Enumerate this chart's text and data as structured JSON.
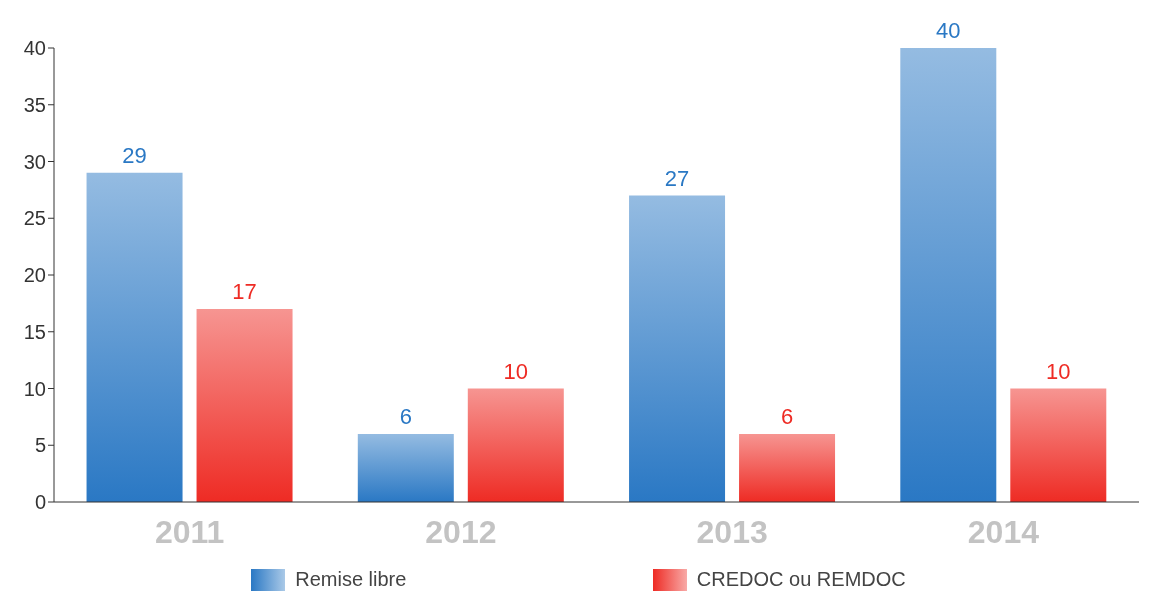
{
  "chart_data": {
    "type": "bar",
    "categories": [
      "2011",
      "2012",
      "2013",
      "2014"
    ],
    "series": [
      {
        "name": "Remise libre",
        "color": "#2a78c4",
        "values": [
          29,
          6,
          27,
          40
        ]
      },
      {
        "name": "CREDOC ou REMDOC",
        "color": "#ee2b24",
        "values": [
          17,
          10,
          6,
          10
        ]
      }
    ],
    "ylim": [
      0,
      40
    ],
    "yticks": [
      0,
      5,
      10,
      15,
      20,
      25,
      30,
      35,
      40
    ],
    "grid": false,
    "legend": "bottom",
    "data_labels": true
  }
}
